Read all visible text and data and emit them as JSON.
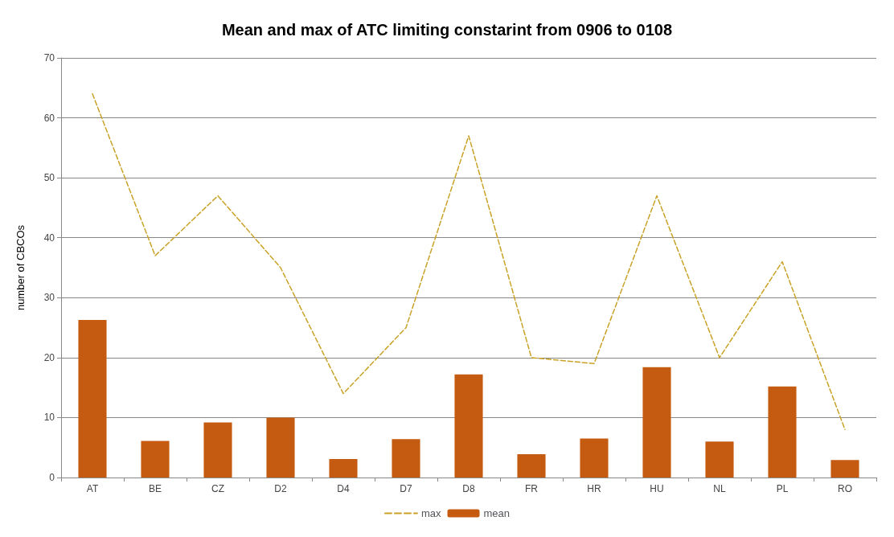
{
  "chart_data": {
    "type": "bar",
    "title": "Mean and max of ATC limiting constarint from 0906 to 0108",
    "ylabel": "number of CBCOs",
    "categories": [
      "AT",
      "BE",
      "CZ",
      "D2",
      "D4",
      "D7",
      "D8",
      "FR",
      "HR",
      "HU",
      "NL",
      "PL",
      "RO"
    ],
    "series": [
      {
        "name": "max",
        "type": "line",
        "color": "#c9a227",
        "line_style": "dashed",
        "marker": "none",
        "values": [
          64,
          37,
          47,
          35,
          14,
          25,
          57,
          20,
          19,
          47,
          20,
          36,
          8
        ]
      },
      {
        "name": "mean",
        "color": "#c55a11",
        "values": [
          26.3,
          6.1,
          9.2,
          10.0,
          3.1,
          6.4,
          17.2,
          3.9,
          6.5,
          18.4,
          6.0,
          15.2,
          2.9
        ]
      }
    ],
    "ylim": [
      0,
      70
    ],
    "yticks": [
      0,
      10,
      20,
      30,
      40,
      50,
      60,
      70
    ],
    "grid": "y",
    "legend": "bottom"
  }
}
